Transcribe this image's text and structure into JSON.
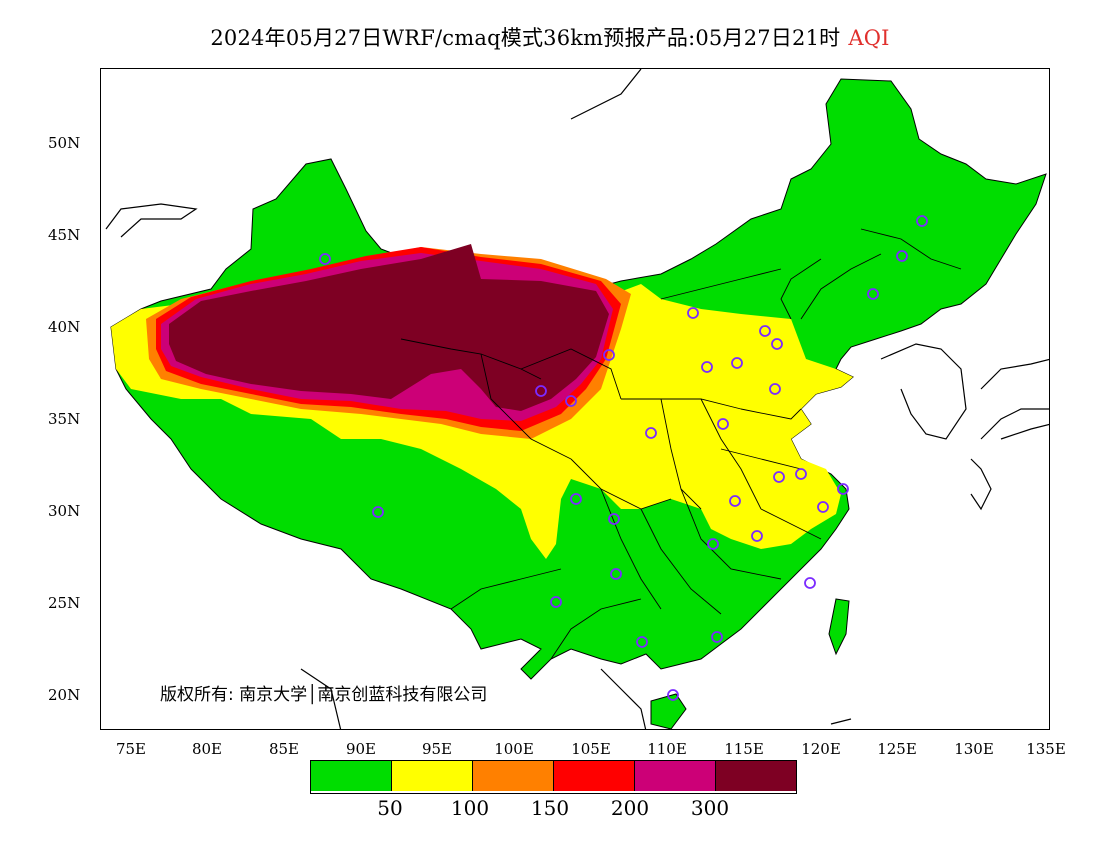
{
  "title": {
    "main": "2024年05月27日WRF/cmaq模式36km预报产品:05月27日21时",
    "variable": "AQI",
    "variable_color": "#e0302d"
  },
  "axes": {
    "lat_labels": [
      "50N",
      "45N",
      "40N",
      "35N",
      "30N",
      "25N",
      "20N"
    ],
    "lon_labels": [
      "75E",
      "80E",
      "85E",
      "90E",
      "95E",
      "100E",
      "105E",
      "110E",
      "115E",
      "120E",
      "125E",
      "130E",
      "135E"
    ]
  },
  "copyright": "版权所有: 南京大学│南京创蓝科技有限公司",
  "legend": {
    "colors": [
      "#00dd00",
      "#ffff00",
      "#ff8000",
      "#ff0000",
      "#cc0077",
      "#7e0023"
    ],
    "labels": [
      "50",
      "100",
      "150",
      "200",
      "300"
    ]
  },
  "map": {
    "land_color": "#ffffff",
    "border_color": "#000000",
    "station_color": "#7b2bff",
    "lon_range": [
      73,
      135
    ],
    "lat_range": [
      18,
      54
    ]
  }
}
